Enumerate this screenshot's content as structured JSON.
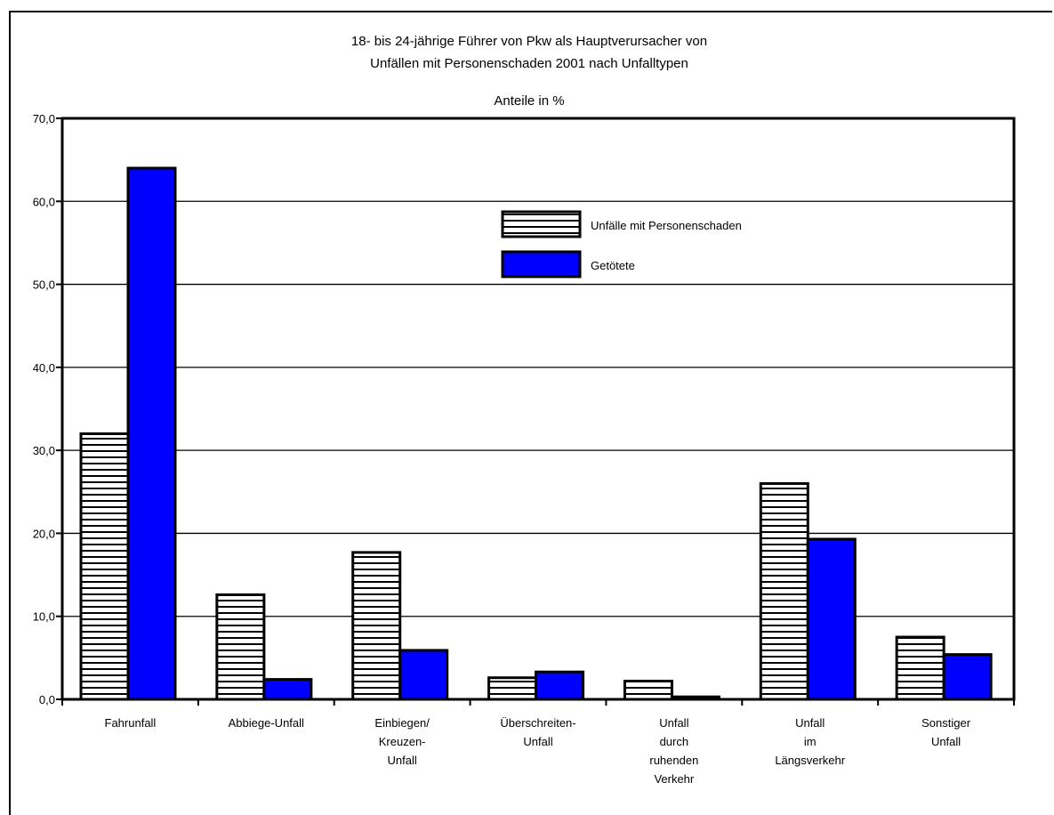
{
  "chart_data": {
    "type": "bar",
    "title_lines": [
      "18- bis 24-jährige Führer von Pkw als Hauptverursacher von",
      "Unfällen mit Personenschaden 2001 nach Unfalltypen"
    ],
    "subtitle": "Anteile in %",
    "categories": [
      [
        "Fahrunfall"
      ],
      [
        "Abbiege-Unfall"
      ],
      [
        "Einbiegen/",
        "Kreuzen-",
        "Unfall"
      ],
      [
        "Überschreiten-",
        "Unfall"
      ],
      [
        "Unfall",
        "durch",
        "ruhenden",
        "Verkehr"
      ],
      [
        "Unfall",
        "im",
        "Längsverkehr"
      ],
      [
        "Sonstiger",
        "Unfall"
      ]
    ],
    "series": [
      {
        "name": "Unfälle mit Personenschaden",
        "pattern": "horizontal-stripes",
        "values": [
          32.0,
          12.6,
          17.7,
          2.6,
          2.2,
          26.0,
          7.5
        ]
      },
      {
        "name": "Getötete",
        "color": "#0000ff",
        "values": [
          64.0,
          2.4,
          5.9,
          3.3,
          0.3,
          19.3,
          5.4
        ]
      }
    ],
    "ylim": [
      0,
      70
    ],
    "yticks": [
      "0,0",
      "10,0",
      "20,0",
      "30,0",
      "40,0",
      "50,0",
      "60,0",
      "70,0"
    ],
    "grid": true,
    "legend_position": "top-right"
  }
}
